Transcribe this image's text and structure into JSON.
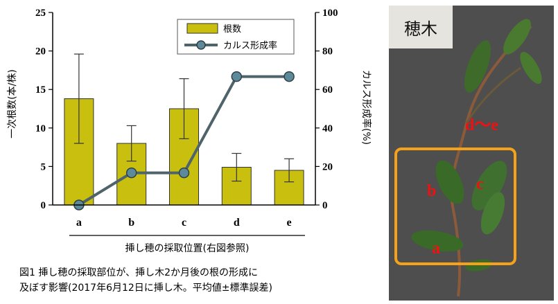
{
  "chart_data": {
    "type": "bar+line",
    "categories": [
      "a",
      "b",
      "c",
      "d",
      "e"
    ],
    "series": [
      {
        "name": "根数",
        "type": "bar",
        "axis": "left",
        "values": [
          13.8,
          8.0,
          12.5,
          4.9,
          4.5
        ],
        "error": [
          5.8,
          2.3,
          3.9,
          1.8,
          1.5
        ],
        "color": "#c8bf0e"
      },
      {
        "name": "カルス形成率",
        "type": "line",
        "axis": "right",
        "values": [
          0,
          16.7,
          16.7,
          66.7,
          66.7
        ],
        "color": "#4f636b"
      }
    ],
    "ylabel": "一次根数(本/株)",
    "y2label": "カルス形成率(%)",
    "xlabel": "挿し穂の採取位置(右図参照)",
    "ylim": [
      0,
      25
    ],
    "y2lim": [
      0,
      100
    ],
    "yticks": [
      0,
      5,
      10,
      15,
      20,
      25
    ],
    "y2ticks": [
      0,
      20,
      40,
      60,
      80,
      100
    ],
    "legend": "top-right"
  },
  "caption": {
    "line1": "図1  挿し穂の採取部位が、挿し木2か月後の根の形成に",
    "line2": "及ぼす影響(2017年6月12日に挿し木。平均値±標準誤差)"
  },
  "photo": {
    "title": "穂木",
    "label_top": "d〜e",
    "label_b": "b",
    "label_c": "c",
    "label_a": "a"
  }
}
